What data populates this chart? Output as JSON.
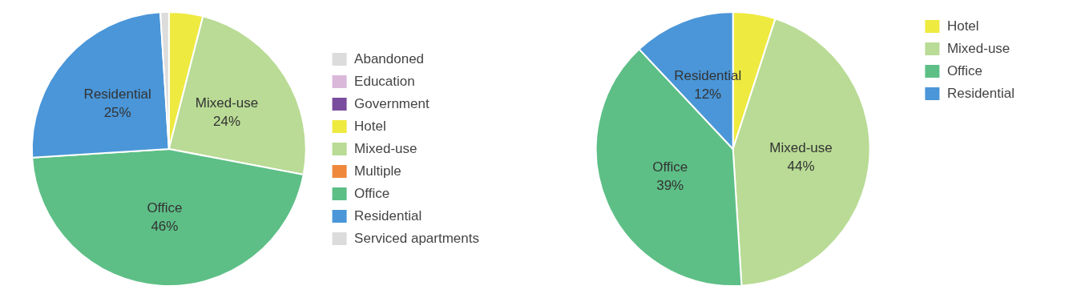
{
  "chart_data": [
    {
      "type": "pie",
      "categories": [
        "Abandoned",
        "Education",
        "Government",
        "Hotel",
        "Mixed-use",
        "Multiple",
        "Office",
        "Residential",
        "Serviced apartments"
      ],
      "values": [
        0,
        0,
        0,
        4,
        24,
        0,
        46,
        25,
        1
      ],
      "value_labels": [
        null,
        null,
        null,
        null,
        "24%",
        null,
        "46%",
        "25%",
        null
      ],
      "colors": [
        "#dcdcdc",
        "#d9b8da",
        "#7a4c9e",
        "#eeea40",
        "#b9db95",
        "#f0883c",
        "#5dbf86",
        "#4a96d8",
        "#dcdcdc"
      ],
      "legend": "right"
    },
    {
      "type": "pie",
      "categories": [
        "Hotel",
        "Mixed-use",
        "Office",
        "Residential"
      ],
      "values": [
        5,
        44,
        39,
        12
      ],
      "value_labels": [
        null,
        "44%",
        "39%",
        "12%"
      ],
      "colors": [
        "#eeea40",
        "#b9db95",
        "#5dbf86",
        "#4a96d8"
      ],
      "legend": "top right"
    }
  ]
}
